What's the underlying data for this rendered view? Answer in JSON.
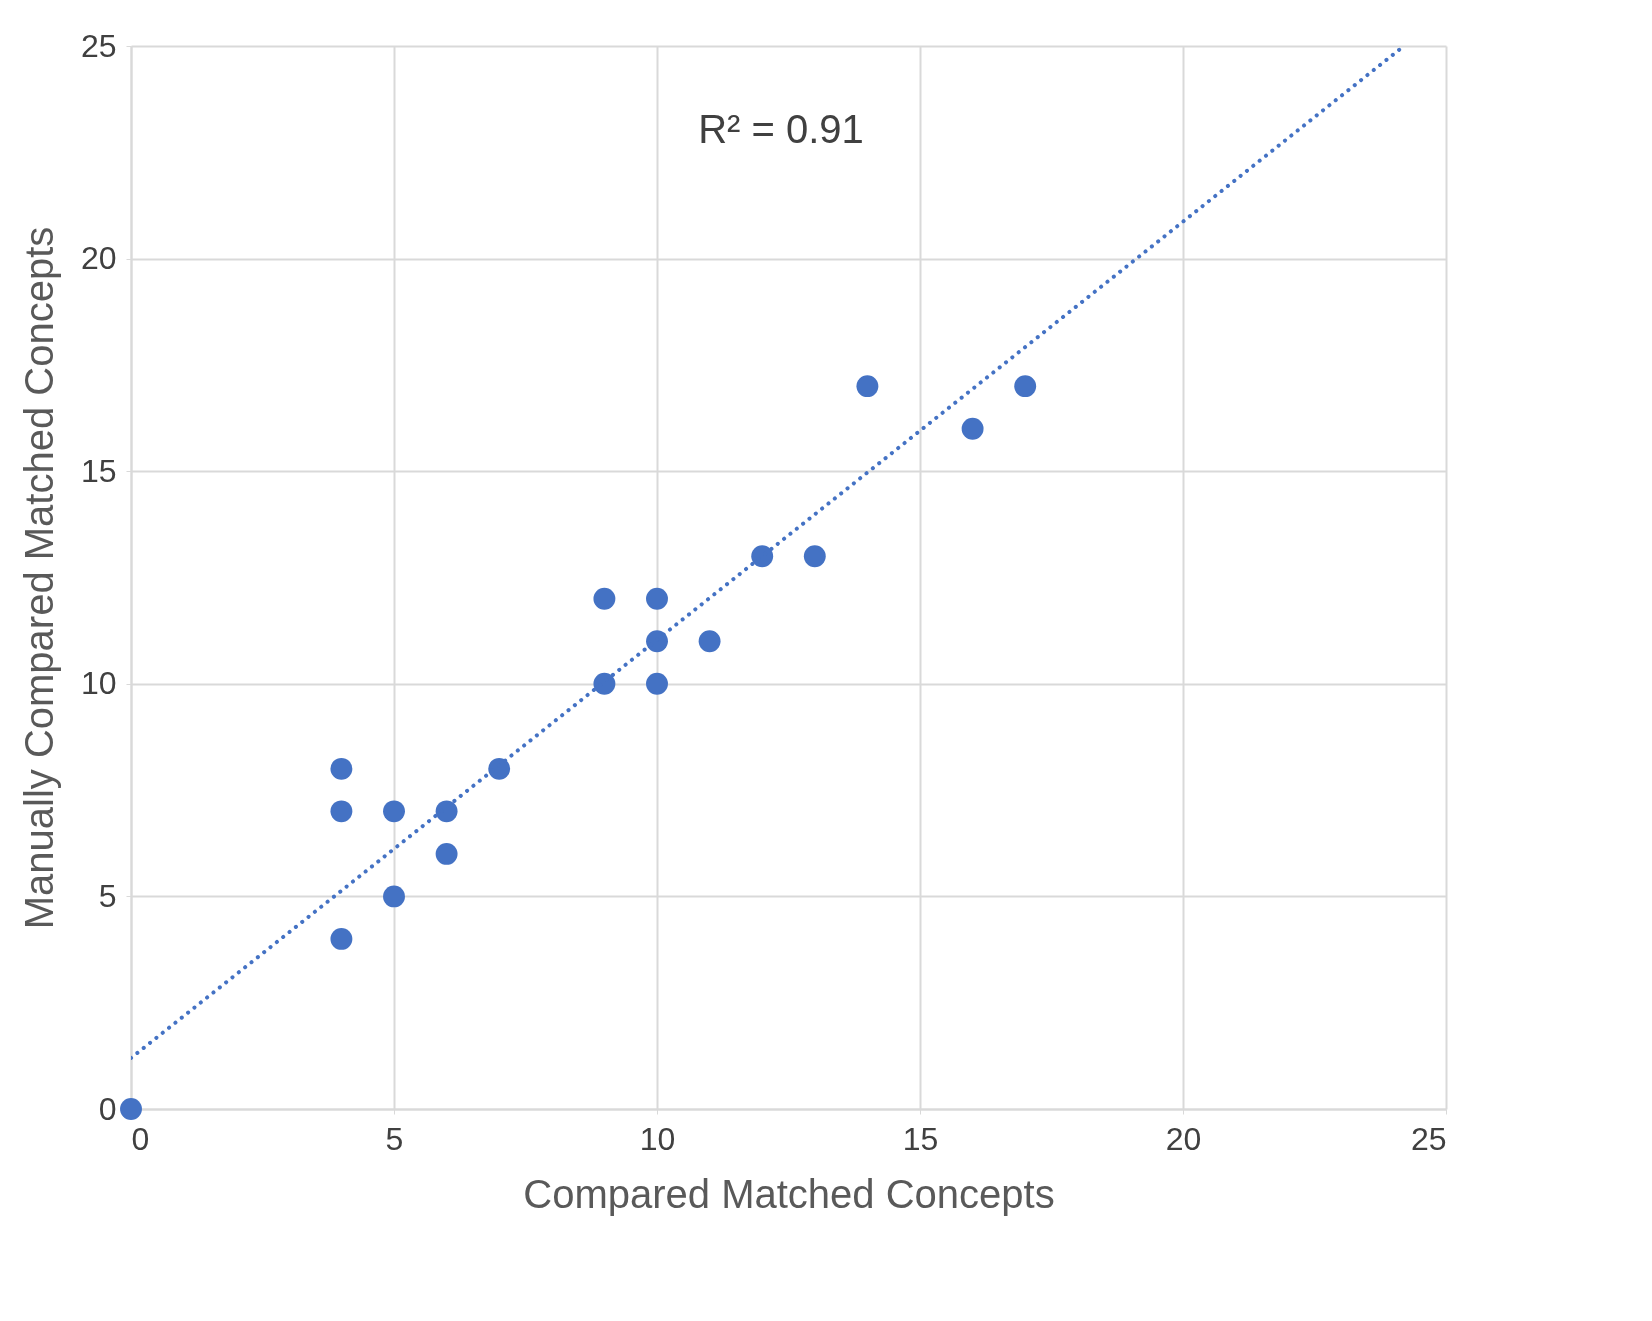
{
  "chart_data": {
    "type": "scatter",
    "xlabel": "Compared Matched Concepts",
    "ylabel": "Manually Compared Matched Concepts",
    "annotations": [
      "R² = 0.91"
    ],
    "xlim": [
      0,
      25
    ],
    "xticks": [
      0,
      5,
      10,
      15,
      20,
      25
    ],
    "ylim": [
      0,
      25
    ],
    "yticks": [
      0,
      5,
      10,
      15,
      20,
      25
    ],
    "grid": true,
    "series": [
      {
        "color": "#4472c4",
        "marker": "circle",
        "x": [
          0,
          4,
          4,
          4,
          5,
          5,
          6,
          6,
          7,
          9,
          9,
          10,
          10,
          10,
          11,
          12,
          13,
          14,
          16,
          17
        ],
        "values": [
          0,
          4,
          7,
          8,
          5,
          7,
          6,
          7,
          8,
          10,
          12,
          10,
          11,
          12,
          11,
          13,
          13,
          17,
          16,
          17
        ]
      },
      {
        "type": "line",
        "line_style": "dotted",
        "color": "#4472c4",
        "x": [
          0,
          24.2
        ],
        "values": [
          1.2,
          25
        ]
      }
    ]
  }
}
